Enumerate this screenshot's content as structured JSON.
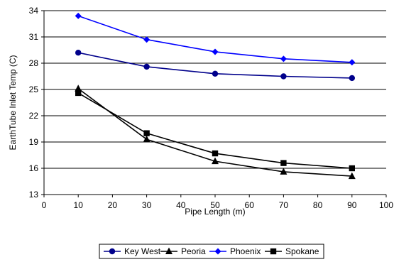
{
  "chart_data": {
    "type": "line",
    "title": "",
    "xlabel": "Pipe Length (m)",
    "ylabel": "EarthTube Inlet Temp (C)",
    "xlim": [
      0,
      100
    ],
    "ylim": [
      13,
      34
    ],
    "x_ticks": [
      0,
      10,
      20,
      30,
      40,
      50,
      60,
      70,
      80,
      90,
      100
    ],
    "y_ticks": [
      13,
      16,
      19,
      22,
      25,
      28,
      31,
      34
    ],
    "x_tick_labels": [
      "0",
      "10",
      "20",
      "30",
      "40",
      "50",
      "60",
      "70",
      "80",
      "90",
      "100"
    ],
    "y_tick_labels": [
      "13",
      "16",
      "19",
      "22",
      "25",
      "28",
      "31",
      "34"
    ],
    "grid": "horizontal",
    "legend_position": "bottom",
    "x": [
      10,
      30,
      50,
      70,
      90
    ],
    "series": [
      {
        "name": "Key West",
        "values": [
          29.2,
          27.6,
          26.8,
          26.5,
          26.3
        ],
        "color": "#00008B",
        "marker": "circle"
      },
      {
        "name": "Peoria",
        "values": [
          25.1,
          19.3,
          16.8,
          15.6,
          15.1
        ],
        "color": "#000000",
        "marker": "triangle"
      },
      {
        "name": "Phoenix",
        "values": [
          33.4,
          30.7,
          29.3,
          28.5,
          28.1
        ],
        "color": "#0000FF",
        "marker": "diamond"
      },
      {
        "name": "Spokane",
        "values": [
          24.6,
          20.0,
          17.7,
          16.6,
          16.0
        ],
        "color": "#000000",
        "marker": "square"
      }
    ]
  }
}
